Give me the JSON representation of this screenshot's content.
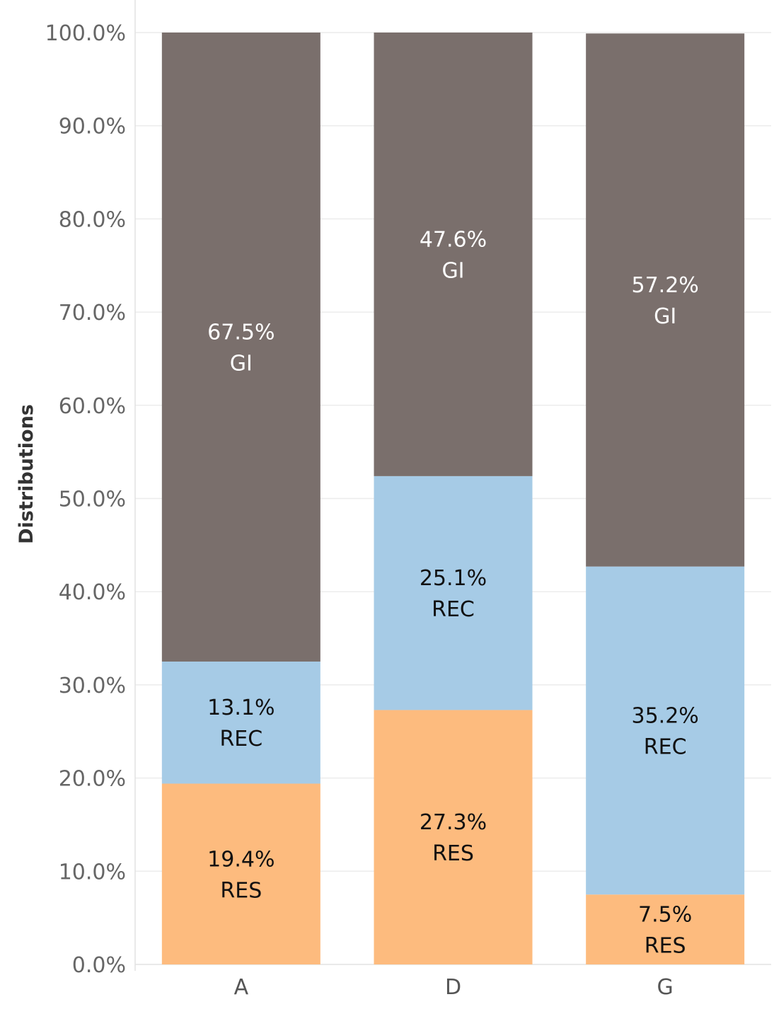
{
  "chart_data": {
    "type": "bar",
    "stacked": true,
    "ylabel": "Distributions",
    "xlabel": "",
    "ylim": [
      0,
      100
    ],
    "y_ticks": [
      "0.0%",
      "10.0%",
      "20.0%",
      "30.0%",
      "40.0%",
      "50.0%",
      "60.0%",
      "70.0%",
      "80.0%",
      "90.0%",
      "100.0%"
    ],
    "categories": [
      "A",
      "D",
      "G"
    ],
    "grid": true,
    "legend": "none",
    "series": [
      {
        "name": "RES",
        "color": "#FDBB7E",
        "label_color": "#111111",
        "values": [
          19.4,
          27.3,
          7.5
        ],
        "labels": [
          "19.4%",
          "27.3%",
          "7.5%"
        ]
      },
      {
        "name": "REC",
        "color": "#A6CBE6",
        "label_color": "#111111",
        "values": [
          13.1,
          25.1,
          35.2
        ],
        "labels": [
          "13.1%",
          "25.1%",
          "35.2%"
        ]
      },
      {
        "name": "GI",
        "color": "#7A6F6C",
        "label_color": "#ffffff",
        "values": [
          67.5,
          47.6,
          57.2
        ],
        "labels": [
          "67.5%",
          "47.6%",
          "57.2%"
        ]
      }
    ]
  }
}
